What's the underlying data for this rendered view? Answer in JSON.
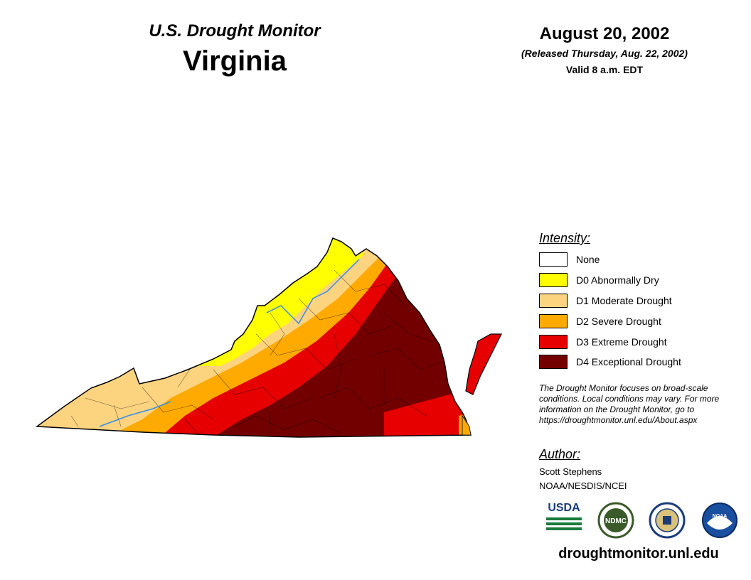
{
  "header": {
    "title": "U.S. Drought Monitor",
    "state": "Virginia",
    "date": "August 20, 2002",
    "released": "(Released Thursday, Aug. 22, 2002)",
    "valid": "Valid 8 a.m. EDT"
  },
  "legend": {
    "title": "Intensity:",
    "items": [
      {
        "label": "None",
        "color": "#ffffff"
      },
      {
        "label": "D0 Abnormally Dry",
        "color": "#ffff00"
      },
      {
        "label": "D1 Moderate Drought",
        "color": "#fcd37f"
      },
      {
        "label": "D2 Severe Drought",
        "color": "#ffaa00"
      },
      {
        "label": "D3 Extreme Drought",
        "color": "#e60000"
      },
      {
        "label": "D4 Exceptional Drought",
        "color": "#730000"
      }
    ]
  },
  "note": "The Drought Monitor focuses on broad-scale conditions. Local conditions may vary. For more information on the Drought Monitor, go to https://droughtmonitor.unl.edu/About.aspx",
  "author": {
    "title": "Author:",
    "name": "Scott Stephens",
    "org": "NOAA/NESDIS/NCEI"
  },
  "logos": {
    "usda": "USDA",
    "ndmc": "NDMC",
    "noaa": "NOAA"
  },
  "site": "droughtmonitor.unl.edu",
  "map": {
    "region": "Virginia",
    "drought_categories_present": [
      "D0",
      "D1",
      "D2",
      "D3",
      "D4"
    ]
  }
}
